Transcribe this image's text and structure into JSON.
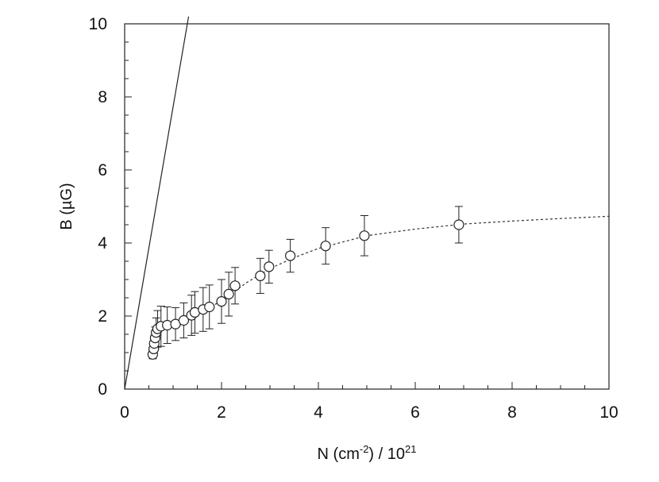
{
  "chart_data": {
    "type": "scatter",
    "title": "",
    "xlabel": "N (cm-2) / 10^21",
    "xlabel_parts": {
      "pre": "N (cm",
      "sup1": "-2",
      "mid": ") / 10",
      "sup2": "21"
    },
    "ylabel": "B (µG)",
    "xlim": [
      0,
      10
    ],
    "ylim": [
      0,
      10
    ],
    "x_ticks": [
      "0",
      "2",
      "4",
      "6",
      "8",
      "10"
    ],
    "y_ticks": [
      "0",
      "2",
      "4",
      "6",
      "8",
      "10"
    ],
    "grid": false,
    "legend": "none",
    "series": [
      {
        "kind": "points-with-error-bars",
        "marker": "open-circle",
        "points": [
          {
            "x": 0.58,
            "y": 0.95,
            "err": 0.12
          },
          {
            "x": 0.6,
            "y": 1.1,
            "err": 0.15
          },
          {
            "x": 0.61,
            "y": 1.25,
            "err": 0.2
          },
          {
            "x": 0.63,
            "y": 1.4,
            "err": 0.3
          },
          {
            "x": 0.65,
            "y": 1.55,
            "err": 0.4
          },
          {
            "x": 0.68,
            "y": 1.65,
            "err": 0.5
          },
          {
            "x": 0.75,
            "y": 1.72,
            "err": 0.55
          },
          {
            "x": 0.88,
            "y": 1.75,
            "err": 0.5
          },
          {
            "x": 1.05,
            "y": 1.78,
            "err": 0.45
          },
          {
            "x": 1.22,
            "y": 1.88,
            "err": 0.48
          },
          {
            "x": 1.38,
            "y": 2.02,
            "err": 0.55
          },
          {
            "x": 1.45,
            "y": 2.1,
            "err": 0.57
          },
          {
            "x": 1.62,
            "y": 2.18,
            "err": 0.6
          },
          {
            "x": 1.75,
            "y": 2.25,
            "err": 0.6
          },
          {
            "x": 2.0,
            "y": 2.4,
            "err": 0.6
          },
          {
            "x": 2.15,
            "y": 2.6,
            "err": 0.6
          },
          {
            "x": 2.28,
            "y": 2.83,
            "err": 0.5
          },
          {
            "x": 2.8,
            "y": 3.1,
            "err": 0.48
          },
          {
            "x": 2.98,
            "y": 3.35,
            "err": 0.45
          },
          {
            "x": 3.42,
            "y": 3.65,
            "err": 0.45
          },
          {
            "x": 4.15,
            "y": 3.92,
            "err": 0.5
          },
          {
            "x": 4.95,
            "y": 4.2,
            "err": 0.55
          },
          {
            "x": 6.9,
            "y": 4.5,
            "err": 0.5
          }
        ]
      },
      {
        "kind": "dotted-curve",
        "x": [
          0.58,
          0.8,
          1.0,
          1.5,
          2.0,
          2.5,
          3.0,
          3.5,
          4.0,
          5.0,
          6.0,
          7.0,
          8.0,
          9.0,
          10.0
        ],
        "y": [
          0.95,
          1.7,
          1.8,
          2.1,
          2.4,
          2.9,
          3.3,
          3.6,
          3.85,
          4.2,
          4.38,
          4.52,
          4.6,
          4.67,
          4.73
        ]
      },
      {
        "kind": "solid-line",
        "x": [
          0.0,
          1.32
        ],
        "y": [
          0.0,
          10.2
        ]
      }
    ]
  }
}
